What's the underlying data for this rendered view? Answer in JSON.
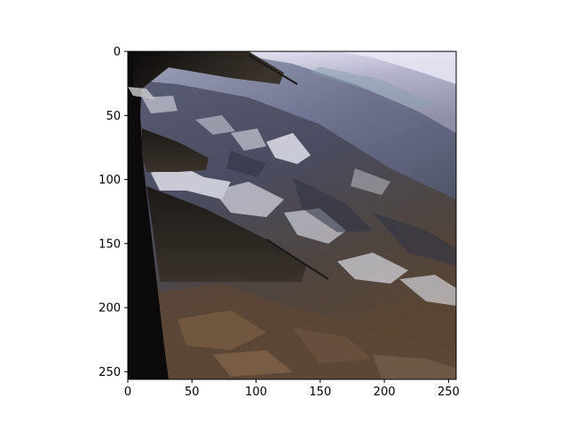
{
  "figure": {
    "background": "#ffffff",
    "subject": "airplane-window-aerial-photo"
  },
  "axes": {
    "xlim": [
      0,
      255
    ],
    "ylim": [
      255,
      0
    ],
    "frame_color": "#000000",
    "x_ticks": [
      {
        "value": 0,
        "label": "0"
      },
      {
        "value": 50,
        "label": "50"
      },
      {
        "value": 100,
        "label": "100"
      },
      {
        "value": 150,
        "label": "150"
      },
      {
        "value": 200,
        "label": "200"
      },
      {
        "value": 250,
        "label": "250"
      }
    ],
    "y_ticks": [
      {
        "value": 0,
        "label": "0"
      },
      {
        "value": 50,
        "label": "50"
      },
      {
        "value": 100,
        "label": "100"
      },
      {
        "value": 150,
        "label": "150"
      },
      {
        "value": 200,
        "label": "200"
      },
      {
        "value": 250,
        "label": "250"
      }
    ]
  }
}
